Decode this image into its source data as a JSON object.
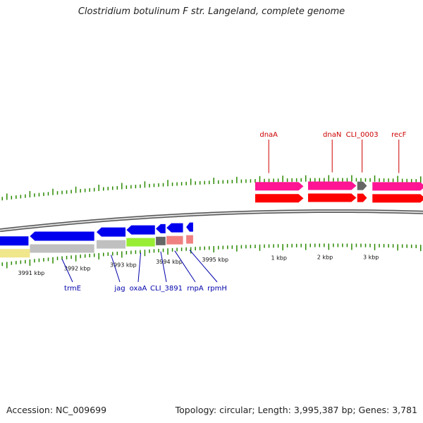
{
  "title": "Clostridium botulinum F str. Langeland, complete genome",
  "footer": {
    "accession": "Accession: NC_009699",
    "stats": "Topology: circular; Length: 3,995,387 bp; Genes: 3,781"
  },
  "colors": {
    "backbone": "#888888",
    "tick": "#2a8a00",
    "forward_label": "#cc0000",
    "reverse_label": "#0000aa",
    "gene_forward": "#ff0000",
    "gene_reverse": "#0000ee",
    "cds_forward": "#ff1493",
    "cds_reverse_a": "#f0e68c",
    "cds_reverse_b": "#c0c0c0",
    "cds_green": "#99ee33",
    "cds_dark": "#666666",
    "cds_pink": "#f08080"
  },
  "scale_labels": [
    {
      "text": "3991 kbp",
      "kbp": 3991
    },
    {
      "text": "3992 kbp",
      "kbp": 3992
    },
    {
      "text": "3993 kbp",
      "kbp": 3993
    },
    {
      "text": "3994 kbp",
      "kbp": 3994
    },
    {
      "text": "3995 kbp",
      "kbp": 3995
    },
    {
      "text": "1 kbp",
      "kbp": 3996.387
    },
    {
      "text": "2 kbp",
      "kbp": 3997.387
    },
    {
      "text": "3 kbp",
      "kbp": 3998.387
    }
  ],
  "visible_range_kbp": [
    3990.35,
    3999.55
  ],
  "forward_genes": [
    {
      "name": "dnaA",
      "start": 3995.9,
      "end": 3996.95
    },
    {
      "name": "dnaN",
      "start": 3997.05,
      "end": 3998.1
    },
    {
      "name": "CLI_0003",
      "start": 3998.12,
      "end": 3998.33
    },
    {
      "name": "recF",
      "start": 3998.45,
      "end": 3999.6
    }
  ],
  "reverse_genes": [
    {
      "name": "trmE",
      "start": 3991.0,
      "end": 3992.4
    },
    {
      "name": "jag",
      "start": 3992.45,
      "end": 3993.08
    },
    {
      "name": "oxaA",
      "start": 3993.1,
      "end": 3993.72
    },
    {
      "name": "CLI_3891",
      "start": 3993.74,
      "end": 3993.95
    },
    {
      "name": "rnpA",
      "start": 3993.97,
      "end": 3994.33
    },
    {
      "name": "rpmH",
      "start": 3994.4,
      "end": 3994.55
    }
  ],
  "forward_labels": [
    "dnaA",
    "dnaN",
    "CLI_0003",
    "recF"
  ],
  "reverse_labels": [
    "trmE",
    "jag",
    "oxaA",
    "CLI_3891",
    "rnpA",
    "rpmH"
  ]
}
